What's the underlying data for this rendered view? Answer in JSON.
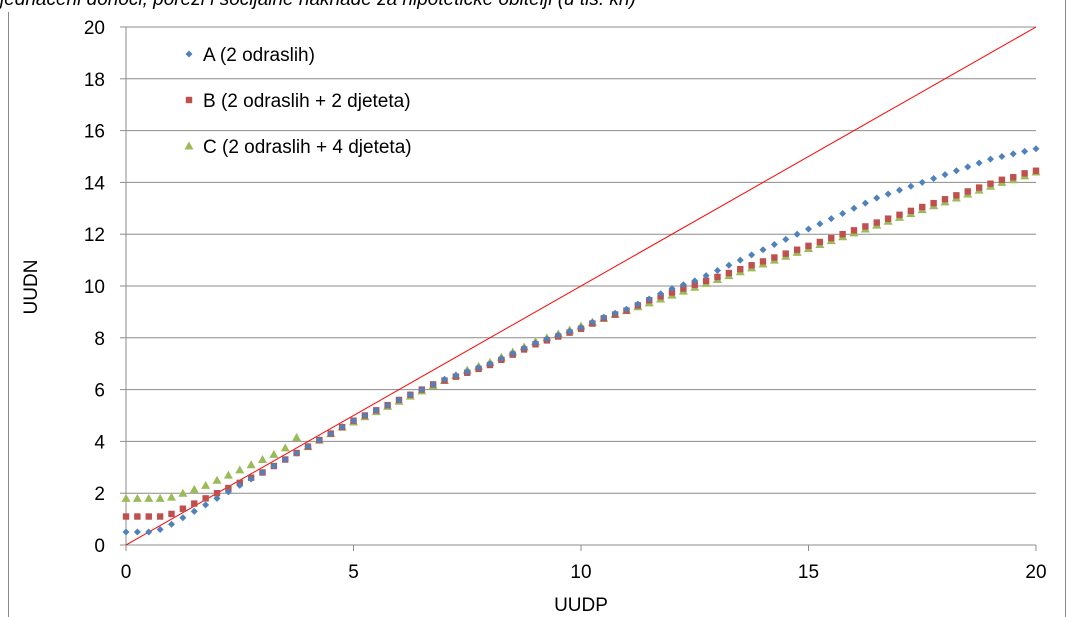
{
  "title": "jednačeni dohoci, porezi i socijalne naknade za hipotetičke obitelji (u tis. kn)",
  "chart_data": {
    "type": "scatter",
    "xlabel": "UUDP",
    "ylabel": "UUDN",
    "xlim": [
      0,
      20
    ],
    "ylim": [
      0,
      20
    ],
    "xticks": [
      "0",
      "5",
      "10",
      "15",
      "20"
    ],
    "yticks": [
      "0",
      "2",
      "4",
      "6",
      "8",
      "10",
      "12",
      "14",
      "16",
      "18",
      "20"
    ],
    "grid": "horizontal",
    "legend_position": "top-left",
    "reference_line": {
      "x": [
        0,
        20
      ],
      "y": [
        0,
        20
      ],
      "color": "#ff0000"
    },
    "series": [
      {
        "name": "A (2 odraslih)",
        "marker": "diamond",
        "color": "#4f81bd",
        "points": [
          [
            0,
            0.5
          ],
          [
            0.25,
            0.5
          ],
          [
            0.5,
            0.5
          ],
          [
            0.75,
            0.6
          ],
          [
            1,
            0.8
          ],
          [
            1.25,
            1.05
          ],
          [
            1.5,
            1.3
          ],
          [
            1.75,
            1.55
          ],
          [
            2,
            1.8
          ],
          [
            2.25,
            2.05
          ],
          [
            2.5,
            2.3
          ],
          [
            2.75,
            2.55
          ],
          [
            3,
            2.8
          ],
          [
            3.25,
            3.05
          ],
          [
            3.5,
            3.3
          ],
          [
            3.75,
            3.55
          ],
          [
            4,
            3.8
          ],
          [
            4.25,
            4.05
          ],
          [
            4.5,
            4.3
          ],
          [
            4.75,
            4.55
          ],
          [
            5,
            4.8
          ],
          [
            5.25,
            5.0
          ],
          [
            5.5,
            5.2
          ],
          [
            5.75,
            5.4
          ],
          [
            6,
            5.6
          ],
          [
            6.25,
            5.8
          ],
          [
            6.5,
            6.0
          ],
          [
            6.75,
            6.2
          ],
          [
            7,
            6.4
          ],
          [
            7.25,
            6.55
          ],
          [
            7.5,
            6.7
          ],
          [
            7.75,
            6.85
          ],
          [
            8,
            7.0
          ],
          [
            8.25,
            7.2
          ],
          [
            8.5,
            7.4
          ],
          [
            8.75,
            7.6
          ],
          [
            9,
            7.8
          ],
          [
            9.25,
            7.95
          ],
          [
            9.5,
            8.1
          ],
          [
            9.75,
            8.25
          ],
          [
            10,
            8.4
          ],
          [
            10.25,
            8.6
          ],
          [
            10.5,
            8.8
          ],
          [
            10.75,
            8.95
          ],
          [
            11,
            9.1
          ],
          [
            11.25,
            9.3
          ],
          [
            11.5,
            9.5
          ],
          [
            11.75,
            9.7
          ],
          [
            12,
            9.9
          ],
          [
            12.25,
            10.05
          ],
          [
            12.5,
            10.2
          ],
          [
            12.75,
            10.4
          ],
          [
            13,
            10.6
          ],
          [
            13.25,
            10.8
          ],
          [
            13.5,
            11.0
          ],
          [
            13.75,
            11.2
          ],
          [
            14,
            11.4
          ],
          [
            14.25,
            11.6
          ],
          [
            14.5,
            11.8
          ],
          [
            14.75,
            12.0
          ],
          [
            15,
            12.2
          ],
          [
            15.25,
            12.4
          ],
          [
            15.5,
            12.6
          ],
          [
            15.75,
            12.8
          ],
          [
            16,
            13.0
          ],
          [
            16.25,
            13.2
          ],
          [
            16.5,
            13.4
          ],
          [
            16.75,
            13.55
          ],
          [
            17,
            13.7
          ],
          [
            17.25,
            13.85
          ],
          [
            17.5,
            14.0
          ],
          [
            17.75,
            14.15
          ],
          [
            18,
            14.3
          ],
          [
            18.25,
            14.45
          ],
          [
            18.5,
            14.6
          ],
          [
            18.75,
            14.75
          ],
          [
            19,
            14.9
          ],
          [
            19.25,
            15.0
          ],
          [
            19.5,
            15.1
          ],
          [
            19.75,
            15.2
          ],
          [
            20,
            15.3
          ]
        ]
      },
      {
        "name": "B (2 odraslih + 2 djeteta)",
        "marker": "square",
        "color": "#c0504d",
        "points": [
          [
            0,
            1.1
          ],
          [
            0.25,
            1.1
          ],
          [
            0.5,
            1.1
          ],
          [
            0.75,
            1.1
          ],
          [
            1,
            1.2
          ],
          [
            1.25,
            1.4
          ],
          [
            1.5,
            1.6
          ],
          [
            1.75,
            1.8
          ],
          [
            2,
            2.0
          ],
          [
            2.25,
            2.2
          ],
          [
            2.5,
            2.4
          ],
          [
            2.75,
            2.6
          ],
          [
            3,
            2.8
          ],
          [
            3.25,
            3.05
          ],
          [
            3.5,
            3.3
          ],
          [
            3.75,
            3.55
          ],
          [
            4,
            3.8
          ],
          [
            4.25,
            4.05
          ],
          [
            4.5,
            4.3
          ],
          [
            4.75,
            4.55
          ],
          [
            5,
            4.8
          ],
          [
            5.25,
            5.0
          ],
          [
            5.5,
            5.2
          ],
          [
            5.75,
            5.4
          ],
          [
            6,
            5.6
          ],
          [
            6.25,
            5.8
          ],
          [
            6.5,
            6.0
          ],
          [
            6.75,
            6.2
          ],
          [
            7,
            6.35
          ],
          [
            7.25,
            6.5
          ],
          [
            7.5,
            6.65
          ],
          [
            7.75,
            6.8
          ],
          [
            8,
            6.95
          ],
          [
            8.25,
            7.15
          ],
          [
            8.5,
            7.35
          ],
          [
            8.75,
            7.55
          ],
          [
            9,
            7.75
          ],
          [
            9.25,
            7.9
          ],
          [
            9.5,
            8.05
          ],
          [
            9.75,
            8.2
          ],
          [
            10,
            8.35
          ],
          [
            10.25,
            8.55
          ],
          [
            10.5,
            8.75
          ],
          [
            10.75,
            8.9
          ],
          [
            11,
            9.05
          ],
          [
            11.25,
            9.25
          ],
          [
            11.5,
            9.45
          ],
          [
            11.75,
            9.6
          ],
          [
            12,
            9.75
          ],
          [
            12.25,
            9.9
          ],
          [
            12.5,
            10.05
          ],
          [
            12.75,
            10.2
          ],
          [
            13,
            10.35
          ],
          [
            13.25,
            10.5
          ],
          [
            13.5,
            10.65
          ],
          [
            13.75,
            10.8
          ],
          [
            14,
            10.95
          ],
          [
            14.25,
            11.1
          ],
          [
            14.5,
            11.25
          ],
          [
            14.75,
            11.4
          ],
          [
            15,
            11.55
          ],
          [
            15.25,
            11.7
          ],
          [
            15.5,
            11.85
          ],
          [
            15.75,
            12.0
          ],
          [
            16,
            12.15
          ],
          [
            16.25,
            12.3
          ],
          [
            16.5,
            12.45
          ],
          [
            16.75,
            12.6
          ],
          [
            17,
            12.75
          ],
          [
            17.25,
            12.9
          ],
          [
            17.5,
            13.05
          ],
          [
            17.75,
            13.2
          ],
          [
            18,
            13.35
          ],
          [
            18.25,
            13.5
          ],
          [
            18.5,
            13.65
          ],
          [
            18.75,
            13.8
          ],
          [
            19,
            13.95
          ],
          [
            19.25,
            14.1
          ],
          [
            19.5,
            14.2
          ],
          [
            19.75,
            14.35
          ],
          [
            20,
            14.45
          ]
        ]
      },
      {
        "name": "C (2 odraslih + 4 djeteta)",
        "marker": "triangle",
        "color": "#9bbb59",
        "points": [
          [
            0,
            1.8
          ],
          [
            0.25,
            1.8
          ],
          [
            0.5,
            1.8
          ],
          [
            0.75,
            1.8
          ],
          [
            1,
            1.85
          ],
          [
            1.25,
            2.0
          ],
          [
            1.5,
            2.15
          ],
          [
            1.75,
            2.3
          ],
          [
            2,
            2.5
          ],
          [
            2.25,
            2.7
          ],
          [
            2.5,
            2.9
          ],
          [
            2.75,
            3.1
          ],
          [
            3,
            3.3
          ],
          [
            3.25,
            3.5
          ],
          [
            3.5,
            3.75
          ],
          [
            3.75,
            4.15
          ],
          [
            4,
            3.8
          ],
          [
            4.25,
            4.05
          ],
          [
            4.5,
            4.3
          ],
          [
            4.75,
            4.55
          ],
          [
            5,
            4.75
          ],
          [
            5.25,
            4.95
          ],
          [
            5.5,
            5.15
          ],
          [
            5.75,
            5.35
          ],
          [
            6,
            5.55
          ],
          [
            6.25,
            5.75
          ],
          [
            6.5,
            5.95
          ],
          [
            6.75,
            6.15
          ],
          [
            7,
            6.35
          ],
          [
            7.25,
            6.55
          ],
          [
            7.5,
            6.75
          ],
          [
            7.75,
            6.9
          ],
          [
            8,
            7.05
          ],
          [
            8.25,
            7.25
          ],
          [
            8.5,
            7.45
          ],
          [
            8.75,
            7.65
          ],
          [
            9,
            7.85
          ],
          [
            9.25,
            8.0
          ],
          [
            9.5,
            8.15
          ],
          [
            9.75,
            8.3
          ],
          [
            10,
            8.45
          ],
          [
            10.25,
            8.6
          ],
          [
            10.5,
            8.75
          ],
          [
            10.75,
            8.9
          ],
          [
            11,
            9.05
          ],
          [
            11.25,
            9.2
          ],
          [
            11.5,
            9.35
          ],
          [
            11.75,
            9.5
          ],
          [
            12,
            9.65
          ],
          [
            12.25,
            9.8
          ],
          [
            12.5,
            9.95
          ],
          [
            12.75,
            10.1
          ],
          [
            13,
            10.25
          ],
          [
            13.25,
            10.4
          ],
          [
            13.5,
            10.55
          ],
          [
            13.75,
            10.7
          ],
          [
            14,
            10.85
          ],
          [
            14.25,
            11.0
          ],
          [
            14.5,
            11.15
          ],
          [
            14.75,
            11.3
          ],
          [
            15,
            11.45
          ],
          [
            15.25,
            11.6
          ],
          [
            15.5,
            11.75
          ],
          [
            15.75,
            11.9
          ],
          [
            16,
            12.05
          ],
          [
            16.25,
            12.2
          ],
          [
            16.5,
            12.35
          ],
          [
            16.75,
            12.5
          ],
          [
            17,
            12.65
          ],
          [
            17.25,
            12.8
          ],
          [
            17.5,
            12.95
          ],
          [
            17.75,
            13.1
          ],
          [
            18,
            13.25
          ],
          [
            18.25,
            13.4
          ],
          [
            18.5,
            13.55
          ],
          [
            18.75,
            13.7
          ],
          [
            19,
            13.85
          ],
          [
            19.25,
            14.0
          ],
          [
            19.5,
            14.1
          ],
          [
            19.75,
            14.25
          ],
          [
            20,
            14.4
          ]
        ]
      }
    ]
  }
}
